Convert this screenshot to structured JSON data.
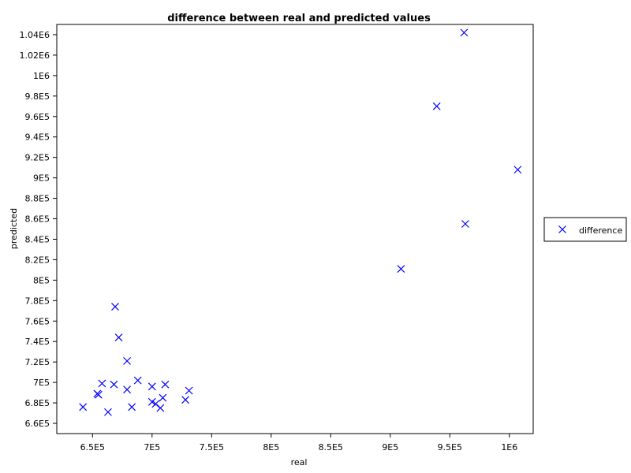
{
  "chart_data": {
    "type": "scatter",
    "title": "difference between real and predicted values",
    "xlabel": "real",
    "ylabel": "predicted",
    "xlim": [
      620000,
      1020000
    ],
    "ylim": [
      650000,
      1050000
    ],
    "xticks": [
      650000,
      700000,
      750000,
      800000,
      850000,
      900000,
      950000,
      1000000
    ],
    "xtick_labels": [
      "6.5E5",
      "7E5",
      "7.5E5",
      "8E5",
      "8.5E5",
      "9E5",
      "9.5E5",
      "1E6"
    ],
    "yticks": [
      660000,
      680000,
      700000,
      720000,
      740000,
      760000,
      780000,
      800000,
      820000,
      840000,
      860000,
      880000,
      900000,
      920000,
      940000,
      960000,
      980000,
      1000000,
      1020000,
      1040000
    ],
    "ytick_labels": [
      "6.6E5",
      "6.8E5",
      "7E5",
      "7.2E5",
      "7.4E5",
      "7.6E5",
      "7.8E5",
      "8E5",
      "8.2E5",
      "8.4E5",
      "8.6E5",
      "8.8E5",
      "9E5",
      "9.2E5",
      "9.4E5",
      "9.6E5",
      "9.8E5",
      "1E6",
      "1.02E6",
      "1.04E6"
    ],
    "grid": false,
    "legend_position": "right",
    "series": [
      {
        "name": "difference",
        "color": "#0000ff",
        "marker": "x",
        "points": [
          [
            642000,
            676000
          ],
          [
            654000,
            689000
          ],
          [
            655000,
            688000
          ],
          [
            658000,
            699000
          ],
          [
            663000,
            671000
          ],
          [
            668000,
            698000
          ],
          [
            669000,
            774000
          ],
          [
            672000,
            744000
          ],
          [
            679000,
            721000
          ],
          [
            679000,
            693000
          ],
          [
            683000,
            676000
          ],
          [
            688000,
            702000
          ],
          [
            700000,
            681000
          ],
          [
            700000,
            696000
          ],
          [
            703000,
            679000
          ],
          [
            707000,
            675000
          ],
          [
            709000,
            685000
          ],
          [
            711000,
            698000
          ],
          [
            728000,
            683000
          ],
          [
            731000,
            692000
          ],
          [
            909000,
            811000
          ],
          [
            939000,
            970000
          ],
          [
            962000,
            1042000
          ],
          [
            963000,
            855000
          ],
          [
            1007000,
            908000
          ]
        ]
      }
    ]
  }
}
